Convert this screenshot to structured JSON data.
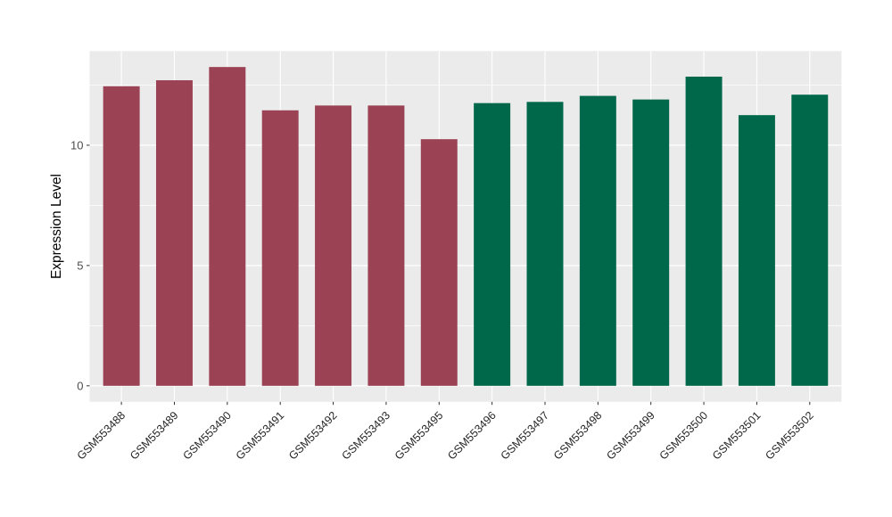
{
  "chart_data": {
    "type": "bar",
    "title": "",
    "xlabel": "",
    "ylabel": "Expression Level",
    "categories": [
      "GSM553488",
      "GSM553489",
      "GSM553490",
      "GSM553491",
      "GSM553492",
      "GSM553493",
      "GSM553495",
      "GSM553496",
      "GSM553497",
      "GSM553498",
      "GSM553499",
      "GSM553500",
      "GSM553501",
      "GSM553502"
    ],
    "values": [
      12.45,
      12.7,
      13.25,
      11.45,
      11.65,
      11.65,
      10.25,
      11.75,
      11.8,
      12.05,
      11.9,
      12.85,
      11.25,
      12.1
    ],
    "colors": [
      "#9B4254",
      "#9B4254",
      "#9B4254",
      "#9B4254",
      "#9B4254",
      "#9B4254",
      "#9B4254",
      "#00684A",
      "#00684A",
      "#00684A",
      "#00684A",
      "#00684A",
      "#00684A",
      "#00684A"
    ],
    "group_colors": {
      "left_group": "#9B4254",
      "right_group": "#00684A"
    },
    "y_ticks": [
      "0",
      "5",
      "10"
    ],
    "y_tick_values": [
      0,
      5,
      10
    ],
    "y_minor_tick_values": [
      2.5,
      7.5,
      12.5
    ],
    "ylim": [
      0,
      13.25
    ],
    "x_label_rotation_deg": 45,
    "grid": true,
    "legend_position": "none",
    "style": {
      "panel_background": "#EBEBEB",
      "grid_color": "#FFFFFF",
      "tick_color": "#333333",
      "y_tick_label_color": "#4D4D4D",
      "x_tick_label_color": "#262626",
      "axis_title_color": "#000000",
      "outer_background": "#FFFFFF"
    }
  }
}
